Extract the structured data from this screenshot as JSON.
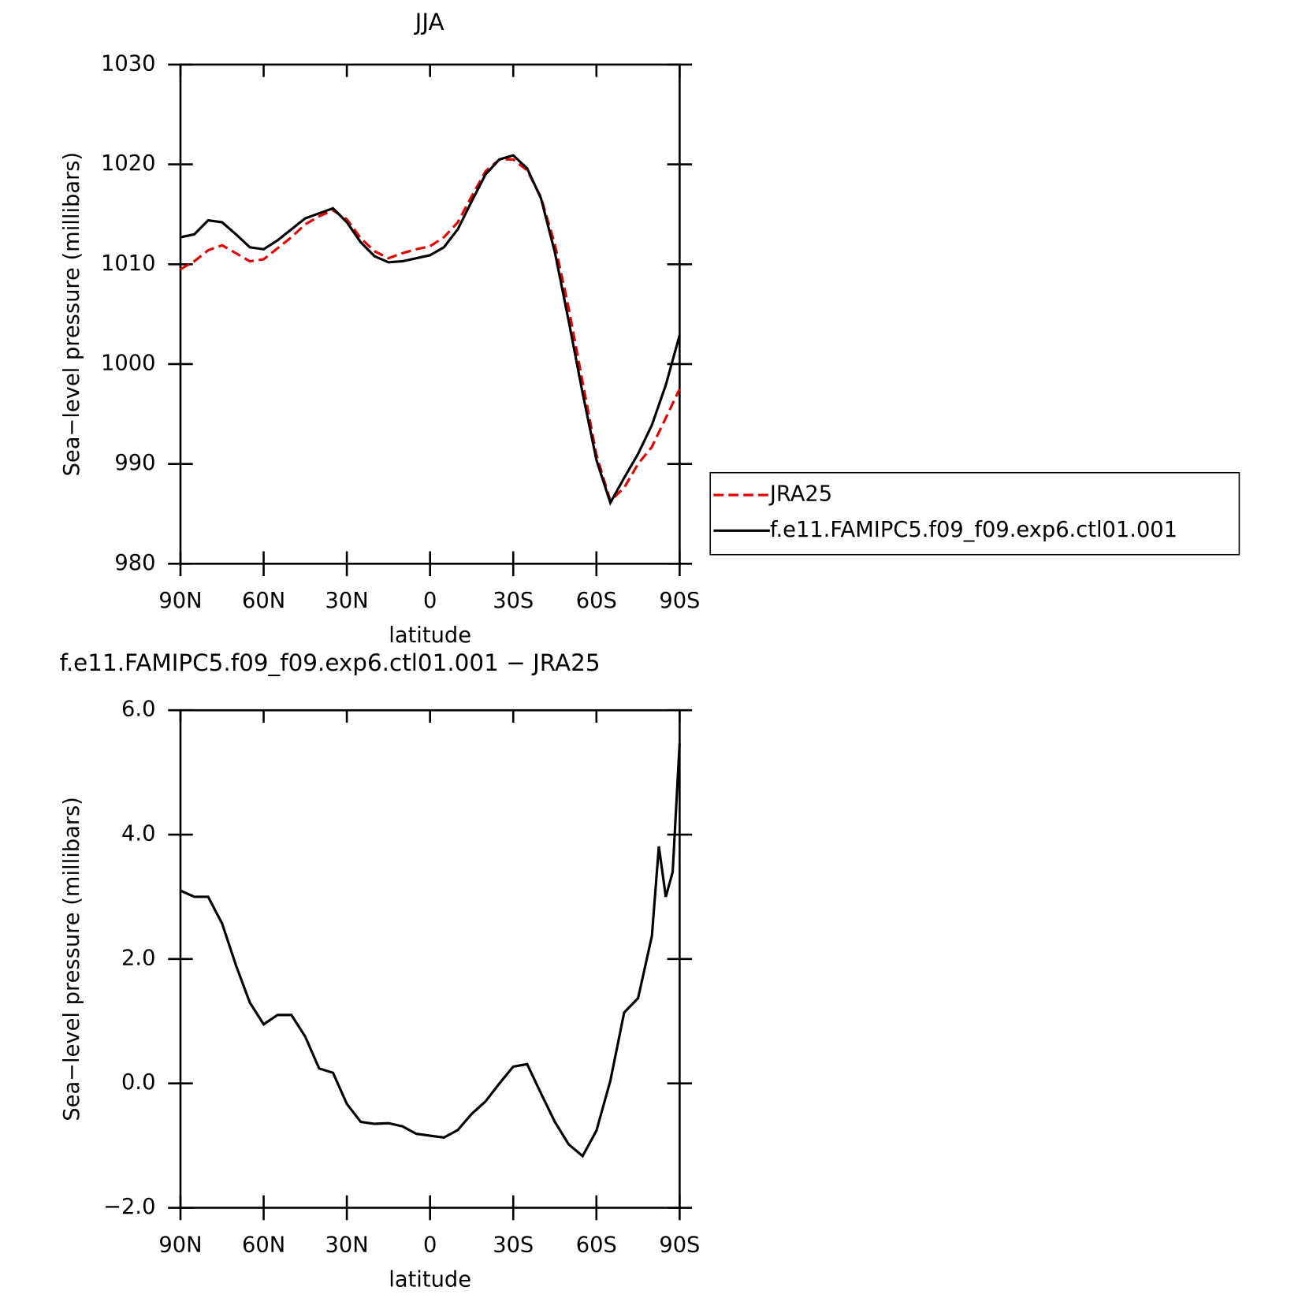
{
  "chart_data": [
    {
      "type": "line",
      "title": "JJA",
      "xlabel": "latitude",
      "ylabel": "Sea−level pressure (millibars)",
      "x": [
        90,
        85,
        80,
        75,
        70,
        65,
        60,
        55,
        50,
        45,
        40,
        35,
        30,
        25,
        20,
        15,
        10,
        5,
        0,
        -5,
        -10,
        -15,
        -20,
        -25,
        -30,
        -35,
        -40,
        -45,
        -50,
        -55,
        -60,
        -65,
        -70,
        -75,
        -80,
        -85,
        -90
      ],
      "xlim": [
        90,
        -90
      ],
      "xticks": [
        {
          "value": 90,
          "label": "90N"
        },
        {
          "value": 60,
          "label": "60N"
        },
        {
          "value": 30,
          "label": "30N"
        },
        0,
        {
          "value": -30,
          "label": "30S"
        },
        {
          "value": -60,
          "label": "60S"
        },
        {
          "value": -90,
          "label": "90S"
        }
      ],
      "ylim": [
        980,
        1030
      ],
      "yticks": [
        980,
        990,
        1000,
        1010,
        1020,
        1030
      ],
      "legend": "right",
      "series": [
        {
          "name": "JRA25",
          "color": "#e00000",
          "dash": true,
          "values": [
            1009.5,
            1010.3,
            1011.4,
            1011.9,
            1011.1,
            1010.3,
            1010.5,
            1011.6,
            1012.7,
            1014.0,
            1014.8,
            1015.4,
            1014.5,
            1012.6,
            1011.3,
            1010.6,
            1011.1,
            1011.5,
            1011.8,
            1012.7,
            1014.2,
            1016.8,
            1019.3,
            1020.5,
            1020.5,
            1019.4,
            1016.7,
            1012.0,
            1005.6,
            998.2,
            990.9,
            986.3,
            987.6,
            990.0,
            991.7,
            994.6,
            997.5
          ]
        },
        {
          "name": "f.e11.FAMIPC5.f09_f09.exp6.ctl01.001",
          "color": "#000000",
          "dash": false,
          "values": [
            1012.7,
            1013.0,
            1014.4,
            1014.2,
            1013.0,
            1011.7,
            1011.5,
            1012.4,
            1013.5,
            1014.6,
            1015.1,
            1015.6,
            1014.2,
            1012.2,
            1010.8,
            1010.2,
            1010.3,
            1010.6,
            1010.9,
            1011.7,
            1013.5,
            1016.3,
            1019.0,
            1020.5,
            1020.9,
            1019.6,
            1016.6,
            1011.2,
            1004.3,
            997.1,
            990.4,
            986.1,
            988.6,
            991.0,
            993.9,
            997.9,
            1002.9
          ]
        }
      ]
    },
    {
      "type": "line",
      "title": "f.e11.FAMIPC5.f09_f09.exp6.ctl01.001 − JRA25",
      "xlabel": "latitude",
      "ylabel": "Sea−level pressure (millibars)",
      "x": [
        90,
        85,
        80,
        75,
        70,
        65,
        60,
        55,
        50,
        45,
        40,
        35,
        30,
        25,
        20,
        15,
        10,
        5,
        0,
        -5,
        -10,
        -15,
        -20,
        -25,
        -30,
        -35,
        -40,
        -45,
        -50,
        -55,
        -60,
        -65,
        -70,
        -75,
        -80,
        -82.5,
        -85,
        -87.5,
        -90
      ],
      "xlim": [
        90,
        -90
      ],
      "xticks": [
        {
          "value": 90,
          "label": "90N"
        },
        {
          "value": 60,
          "label": "60N"
        },
        {
          "value": 30,
          "label": "30N"
        },
        0,
        {
          "value": -30,
          "label": "30S"
        },
        {
          "value": -60,
          "label": "60S"
        },
        {
          "value": -90,
          "label": "90S"
        }
      ],
      "ylim": [
        -2,
        6
      ],
      "yticks": [
        {
          "value": -2,
          "label": "−2.0"
        },
        {
          "value": 0,
          "label": "0.0"
        },
        {
          "value": 2,
          "label": "2.0"
        },
        {
          "value": 4,
          "label": "4.0"
        },
        {
          "value": 6,
          "label": "6.0"
        }
      ],
      "series": [
        {
          "color": "#000000",
          "dash": false,
          "values": [
            3.1,
            3.0,
            3.0,
            2.57,
            1.9,
            1.3,
            0.95,
            1.1,
            1.1,
            0.75,
            0.24,
            0.17,
            -0.33,
            -0.62,
            -0.65,
            -0.64,
            -0.69,
            -0.81,
            -0.84,
            -0.87,
            -0.75,
            -0.49,
            -0.29,
            0.0,
            0.27,
            0.31,
            -0.16,
            -0.62,
            -0.98,
            -1.17,
            -0.76,
            0.04,
            1.14,
            1.37,
            2.37,
            3.81,
            3.0,
            3.4,
            5.47
          ]
        }
      ]
    }
  ]
}
